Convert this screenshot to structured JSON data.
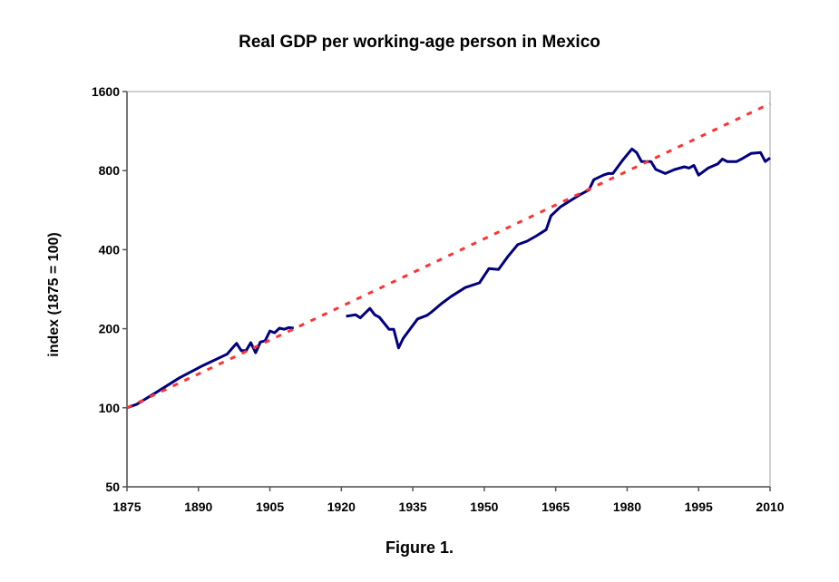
{
  "chart_data": {
    "type": "line",
    "title": "Real GDP per working-age person in Mexico",
    "caption": "Figure 1.",
    "xlabel": "",
    "ylabel": "index (1875 = 100)",
    "xlim": [
      1875,
      2010
    ],
    "ylim": [
      50,
      1600
    ],
    "yscale": "log",
    "xticks": [
      1875,
      1890,
      1905,
      1920,
      1935,
      1950,
      1965,
      1980,
      1995,
      2010
    ],
    "yticks": [
      50,
      100,
      200,
      400,
      800,
      1600
    ],
    "grid": false,
    "legend": "none",
    "series": [
      {
        "style": "solid",
        "color": "#000080",
        "segments": [
          {
            "x": [
              1875,
              1877,
              1881,
              1886,
              1891,
              1896,
              1898,
              1899,
              1900,
              1901,
              1902,
              1903,
              1904,
              1905,
              1906,
              1907,
              1908,
              1909,
              1910
            ],
            "y": [
              100,
              103,
              114,
              130,
              145,
              160,
              176,
              165,
              165,
              177,
              162,
              178,
              180,
              196,
              193,
              201,
              199,
              202,
              201
            ]
          },
          {
            "x": [
              1921,
              1923,
              1924,
              1926,
              1927,
              1928,
              1930,
              1931,
              1932,
              1933,
              1936,
              1938,
              1939,
              1941,
              1943,
              1946,
              1949,
              1951,
              1953,
              1955,
              1957,
              1959,
              1961,
              1963,
              1964,
              1966,
              1970,
              1972,
              1973,
              1975,
              1976,
              1977,
              1979,
              1981,
              1982,
              1983,
              1985,
              1986,
              1988,
              1990,
              1992,
              1993,
              1994,
              1995,
              1997,
              1999,
              2000,
              2001,
              2003,
              2004,
              2006,
              2008,
              2009,
              2010
            ],
            "y": [
              223,
              226,
              220,
              239,
              226,
              221,
              199,
              199,
              169,
              184,
              218,
              225,
              232,
              249,
              265,
              287,
              299,
              339,
              336,
              377,
              418,
              431,
              452,
              477,
              538,
              582,
              646,
              676,
              739,
              769,
              780,
              780,
              874,
              967,
              937,
              866,
              866,
              808,
              780,
              808,
              827,
              818,
              838,
              769,
              818,
              848,
              886,
              866,
              866,
              886,
              930,
              937,
              866,
              894
            ]
          }
        ]
      },
      {
        "style": "dotted",
        "color": "#ff3333",
        "x": [
          1875,
          2010
        ],
        "y": [
          100,
          1440
        ]
      }
    ]
  }
}
